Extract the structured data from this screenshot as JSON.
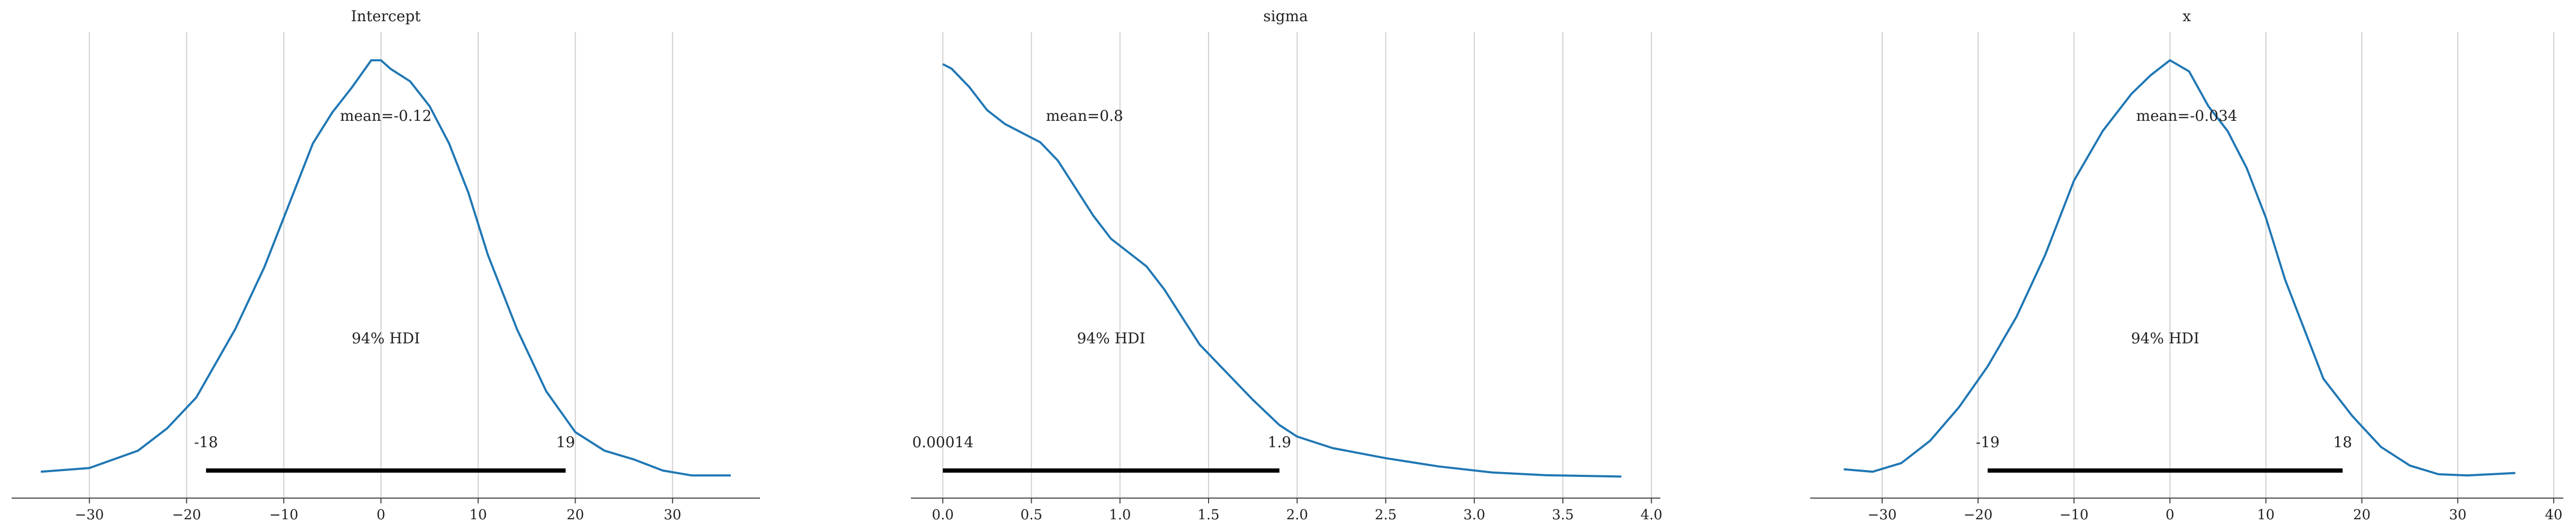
{
  "colors": {
    "density_line": "#1f77b4",
    "hdi_bar": "#000000",
    "gridline": "#d0d0d0",
    "axis": "#444444",
    "text": "#222222"
  },
  "chart_data": [
    {
      "type": "line",
      "title": "Intercept",
      "xlabel": "",
      "ylabel": "",
      "xlim": [
        -38,
        39
      ],
      "xticks": [
        -30,
        -20,
        -10,
        0,
        10,
        20,
        30
      ],
      "xtick_labels": [
        "−30",
        "−20",
        "−10",
        "0",
        "10",
        "20",
        "30"
      ],
      "grid": "vertical",
      "mean_label": "mean=-0.12",
      "hdi_label": "94% HDI",
      "hdi": {
        "low": -18,
        "high": 19,
        "low_label": "-18",
        "high_label": "19"
      },
      "density": {
        "x": [
          -35,
          -30,
          -25,
          -22,
          -19,
          -15,
          -12,
          -9,
          -7,
          -5,
          -3,
          -1,
          0,
          1,
          3,
          5,
          7,
          9,
          11,
          14,
          17,
          20,
          23,
          26,
          29,
          32,
          36
        ],
        "y": [
          0.005,
          0.008,
          0.022,
          0.04,
          0.065,
          0.12,
          0.17,
          0.23,
          0.27,
          0.295,
          0.315,
          0.337,
          0.337,
          0.33,
          0.32,
          0.3,
          0.27,
          0.23,
          0.18,
          0.12,
          0.07,
          0.037,
          0.022,
          0.015,
          0.006,
          0.002,
          0.002
        ]
      },
      "ylim": [
        0,
        0.345
      ]
    },
    {
      "type": "line",
      "title": "sigma",
      "xlabel": "",
      "ylabel": "",
      "xlim": [
        -0.18,
        4.05
      ],
      "xticks": [
        0.0,
        0.5,
        1.0,
        1.5,
        2.0,
        2.5,
        3.0,
        3.5,
        4.0
      ],
      "xtick_labels": [
        "0.0",
        "0.5",
        "1.0",
        "1.5",
        "2.0",
        "2.5",
        "3.0",
        "3.5",
        "4.0"
      ],
      "grid": "vertical",
      "mean_label": "mean=0.8",
      "hdi_label": "94% HDI",
      "hdi": {
        "low": 0.00014,
        "high": 1.9,
        "low_label": "0.00014",
        "high_label": "1.9"
      },
      "density": {
        "x": [
          0.0,
          0.05,
          0.15,
          0.25,
          0.35,
          0.45,
          0.55,
          0.65,
          0.75,
          0.85,
          0.95,
          1.05,
          1.15,
          1.25,
          1.35,
          1.45,
          1.6,
          1.75,
          1.9,
          2.0,
          2.2,
          2.5,
          2.8,
          3.1,
          3.4,
          3.83
        ],
        "y": [
          0.9,
          0.89,
          0.85,
          0.8,
          0.77,
          0.75,
          0.73,
          0.69,
          0.63,
          0.57,
          0.52,
          0.49,
          0.46,
          0.41,
          0.35,
          0.29,
          0.23,
          0.17,
          0.115,
          0.09,
          0.065,
          0.043,
          0.025,
          0.012,
          0.006,
          0.003
        ]
      },
      "ylim": [
        0,
        0.93
      ]
    },
    {
      "type": "line",
      "title": "x",
      "xlabel": "",
      "ylabel": "",
      "xlim": [
        -37.5,
        41
      ],
      "xticks": [
        -30,
        -20,
        -10,
        0,
        10,
        20,
        30,
        40
      ],
      "xtick_labels": [
        "−30",
        "−20",
        "−10",
        "0",
        "10",
        "20",
        "30",
        "40"
      ],
      "grid": "vertical",
      "mean_label": "mean=-0.034",
      "hdi_label": "94% HDI",
      "hdi": {
        "low": -19,
        "high": 18,
        "low_label": "-19",
        "high_label": "18"
      },
      "density": {
        "x": [
          -34,
          -31,
          -28,
          -25,
          -22,
          -19,
          -16,
          -13,
          -10,
          -7,
          -4,
          -2,
          0,
          2,
          4,
          6,
          8,
          10,
          12,
          14,
          16,
          19,
          22,
          25,
          28,
          31,
          36
        ],
        "y": [
          0.007,
          0.005,
          0.012,
          0.03,
          0.057,
          0.09,
          0.13,
          0.18,
          0.24,
          0.28,
          0.31,
          0.325,
          0.337,
          0.328,
          0.3,
          0.28,
          0.25,
          0.21,
          0.16,
          0.12,
          0.08,
          0.05,
          0.025,
          0.01,
          0.003,
          0.002,
          0.004
        ]
      },
      "ylim": [
        0,
        0.345
      ]
    }
  ]
}
